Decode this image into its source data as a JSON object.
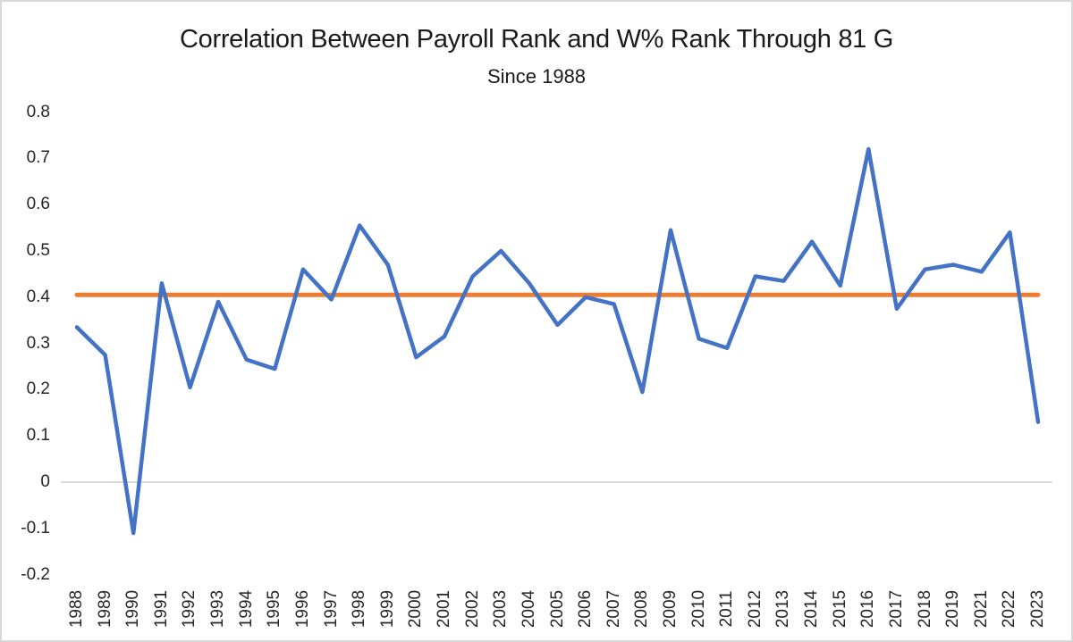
{
  "chart": {
    "title": "Correlation Between Payroll Rank and W% Rank Through 81 G",
    "subtitle": "Since 1988"
  },
  "chart_data": {
    "type": "line",
    "title": "Correlation Between Payroll Rank and W% Rank Through 81 G",
    "subtitle": "Since 1988",
    "categories": [
      "1988",
      "1989",
      "1990",
      "1991",
      "1992",
      "1993",
      "1994",
      "1995",
      "1996",
      "1997",
      "1998",
      "1999",
      "2000",
      "2001",
      "2002",
      "2003",
      "2004",
      "2005",
      "2006",
      "2007",
      "2008",
      "2009",
      "2010",
      "2011",
      "2012",
      "2013",
      "2014",
      "2015",
      "2016",
      "2017",
      "2018",
      "2019",
      "2021",
      "2022",
      "2023"
    ],
    "series": [
      {
        "name": "correlation-by-year",
        "color": "#4472c4",
        "values": [
          0.335,
          0.275,
          -0.11,
          0.43,
          0.205,
          0.39,
          0.265,
          0.245,
          0.46,
          0.395,
          0.555,
          0.47,
          0.27,
          0.315,
          0.445,
          0.5,
          0.43,
          0.34,
          0.4,
          0.385,
          0.195,
          0.545,
          0.31,
          0.29,
          0.445,
          0.435,
          0.52,
          0.425,
          0.72,
          0.375,
          0.46,
          0.47,
          0.455,
          0.54,
          0.13
        ]
      },
      {
        "name": "average-reference-line",
        "color": "#ed7d31",
        "constant": 0.405
      }
    ],
    "xlabel": "",
    "ylabel": "",
    "ylim": [
      -0.2,
      0.8
    ],
    "yticks": [
      "0.8",
      "0.7",
      "0.6",
      "0.5",
      "0.4",
      "0.3",
      "0.2",
      "0.1",
      "0",
      "-0.1",
      "-0.2"
    ],
    "grid": "zero-line-only",
    "gridline_color": "#d9d9d9",
    "legend_position": "none"
  }
}
